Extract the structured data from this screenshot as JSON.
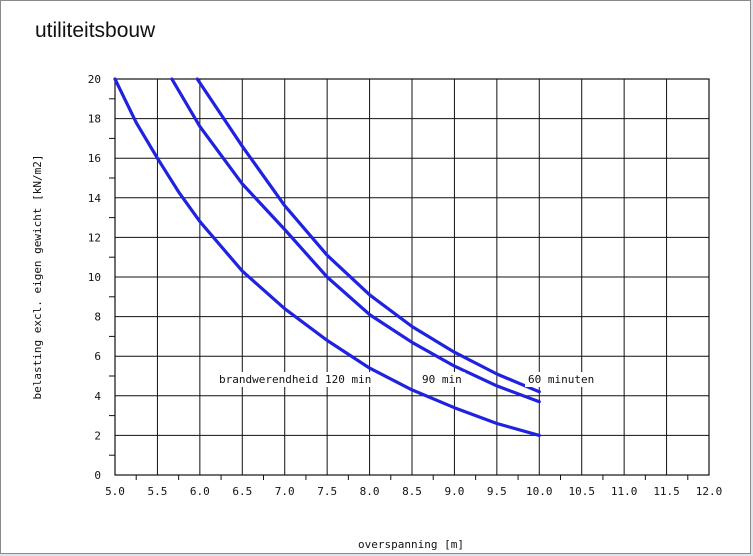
{
  "page": {
    "heading": "utiliteitsbouw"
  },
  "chart_data": {
    "type": "line",
    "xlabel": "overspanning [m]",
    "ylabel": "belasting excl. eigen gewicht [kN/m2]",
    "xlim": [
      5.0,
      12.0
    ],
    "ylim": [
      0,
      20
    ],
    "xticks": [
      "5.0",
      "5.5",
      "6.0",
      "6.5",
      "7.0",
      "7.5",
      "8.0",
      "8.5",
      "9.0",
      "9.5",
      "10.0",
      "10.5",
      "11.0",
      "11.5",
      "12.0"
    ],
    "yticks": [
      "0",
      "2",
      "4",
      "6",
      "8",
      "10",
      "12",
      "14",
      "16",
      "18",
      "20"
    ],
    "grid": true,
    "series_color": "#1f22e0",
    "series": [
      {
        "name": "brandwerendheid 120 min",
        "x": [
          5.0,
          5.25,
          5.5,
          5.75,
          6.0,
          6.5,
          7.0,
          7.5,
          8.0,
          8.5,
          9.0,
          9.5,
          10.0
        ],
        "y": [
          20.0,
          17.8,
          16.0,
          14.3,
          12.8,
          10.3,
          8.4,
          6.8,
          5.4,
          4.3,
          3.4,
          2.6,
          2.0
        ]
      },
      {
        "name": "90 min",
        "x": [
          5.67,
          6.0,
          6.5,
          7.0,
          7.5,
          8.0,
          8.5,
          9.0,
          9.5,
          10.0
        ],
        "y": [
          20.0,
          17.6,
          14.7,
          12.4,
          10.0,
          8.1,
          6.7,
          5.5,
          4.5,
          3.7
        ]
      },
      {
        "name": "60 minuten",
        "x": [
          5.97,
          6.5,
          7.0,
          7.5,
          8.0,
          8.5,
          9.0,
          9.5,
          10.0
        ],
        "y": [
          20.0,
          16.6,
          13.6,
          11.1,
          9.1,
          7.5,
          6.2,
          5.1,
          4.2
        ]
      }
    ]
  }
}
